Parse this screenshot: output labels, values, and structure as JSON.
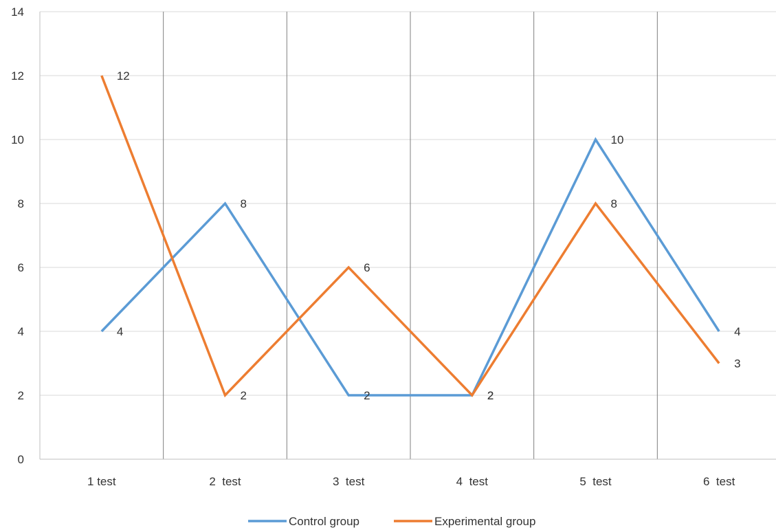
{
  "chart_data": {
    "type": "line",
    "categories": [
      "1 test",
      "2  test",
      "3  test",
      "4  test",
      "5  test",
      "6  test"
    ],
    "series": [
      {
        "name": "Control group",
        "values": [
          4,
          8,
          2,
          2,
          10,
          4
        ],
        "color": "#5B9BD5"
      },
      {
        "name": "Experimental group",
        "values": [
          12,
          2,
          6,
          2,
          8,
          3
        ],
        "color": "#ED7D31"
      }
    ],
    "ylim": [
      0,
      14
    ],
    "yticks": [
      0,
      2,
      4,
      6,
      8,
      10,
      12,
      14
    ],
    "grid": true,
    "legend": "bottom"
  }
}
